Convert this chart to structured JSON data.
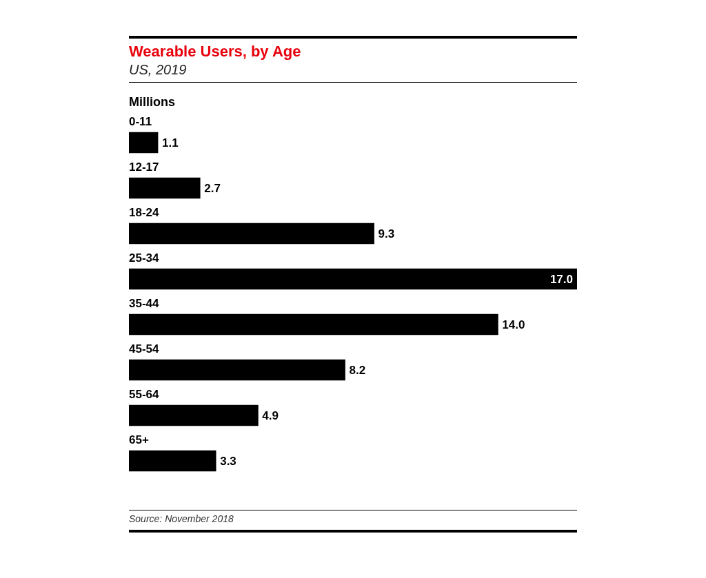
{
  "chart_data": {
    "type": "bar",
    "orientation": "horizontal",
    "title": "Wearable Users, by Age",
    "subtitle": "US, 2019",
    "xlabel": "Millions",
    "categories": [
      "0-11",
      "12-17",
      "18-24",
      "25-34",
      "35-44",
      "45-54",
      "55-64",
      "65+"
    ],
    "values": [
      1.1,
      2.7,
      9.3,
      17.0,
      14.0,
      8.2,
      4.9,
      3.3
    ],
    "value_labels": [
      "1.1",
      "2.7",
      "9.3",
      "17.0",
      "14.0",
      "8.2",
      "4.9",
      "3.3"
    ],
    "color": "#000000",
    "annotations": [
      "Source: November 2018"
    ]
  }
}
